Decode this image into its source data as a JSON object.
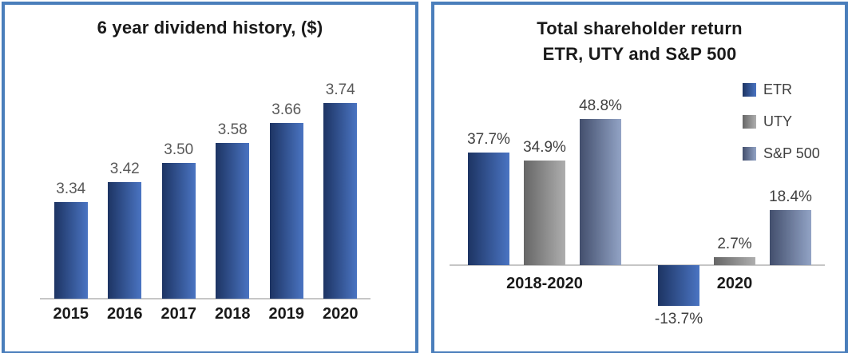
{
  "window": {
    "background": "#ffffff",
    "panel_border_color": "#4a7ebb"
  },
  "colors": {
    "title": "#1a1a1a",
    "category_label": "#1a1a1a",
    "value_label_left_chart": "#595959",
    "value_label_right_chart": "#404040",
    "axis_line": "#c6c6c6",
    "bar_blue_dark": "#1d3463",
    "bar_blue_light": "#4a74c2",
    "bar_gray_dark": "#666666",
    "bar_gray_light": "#aeaeae",
    "bar_slate_dark": "#434f6d",
    "bar_slate_light": "#92a3c5"
  },
  "chart_data": [
    {
      "type": "bar",
      "title": "6 year dividend history, ($)",
      "xlabel": "",
      "ylabel": "",
      "categories": [
        "2015",
        "2016",
        "2017",
        "2018",
        "2019",
        "2020"
      ],
      "values": [
        3.34,
        3.42,
        3.5,
        3.58,
        3.66,
        3.74
      ],
      "value_labels": [
        "3.34",
        "3.42",
        "3.50",
        "3.58",
        "3.66",
        "3.74"
      ],
      "ylim": [
        2.95,
        3.8
      ],
      "grid": false,
      "legend": "none",
      "bar_style": "blue-gradient"
    },
    {
      "type": "bar",
      "title": "Total shareholder return ETR, UTY and S&P 500",
      "title_lines": [
        "Total shareholder return",
        "ETR, UTY and S&P 500"
      ],
      "xlabel": "",
      "ylabel": "",
      "categories": [
        "2018-2020",
        "2020"
      ],
      "series": [
        {
          "name": "ETR",
          "style": "blue-gradient",
          "values": [
            37.7,
            -13.7
          ],
          "value_labels": [
            "37.7%",
            "-13.7%"
          ]
        },
        {
          "name": "UTY",
          "style": "gray-gradient",
          "values": [
            34.9,
            2.7
          ],
          "value_labels": [
            "34.9%",
            "2.7%"
          ]
        },
        {
          "name": "S&P 500",
          "style": "slate-gradient",
          "values": [
            48.8,
            18.4
          ],
          "value_labels": [
            "48.8%",
            "18.4%"
          ]
        }
      ],
      "ylim": [
        -20,
        55
      ],
      "grid": false,
      "legend_position": "right",
      "legend_entries": [
        "ETR",
        "UTY",
        "S&P 500"
      ]
    }
  ]
}
